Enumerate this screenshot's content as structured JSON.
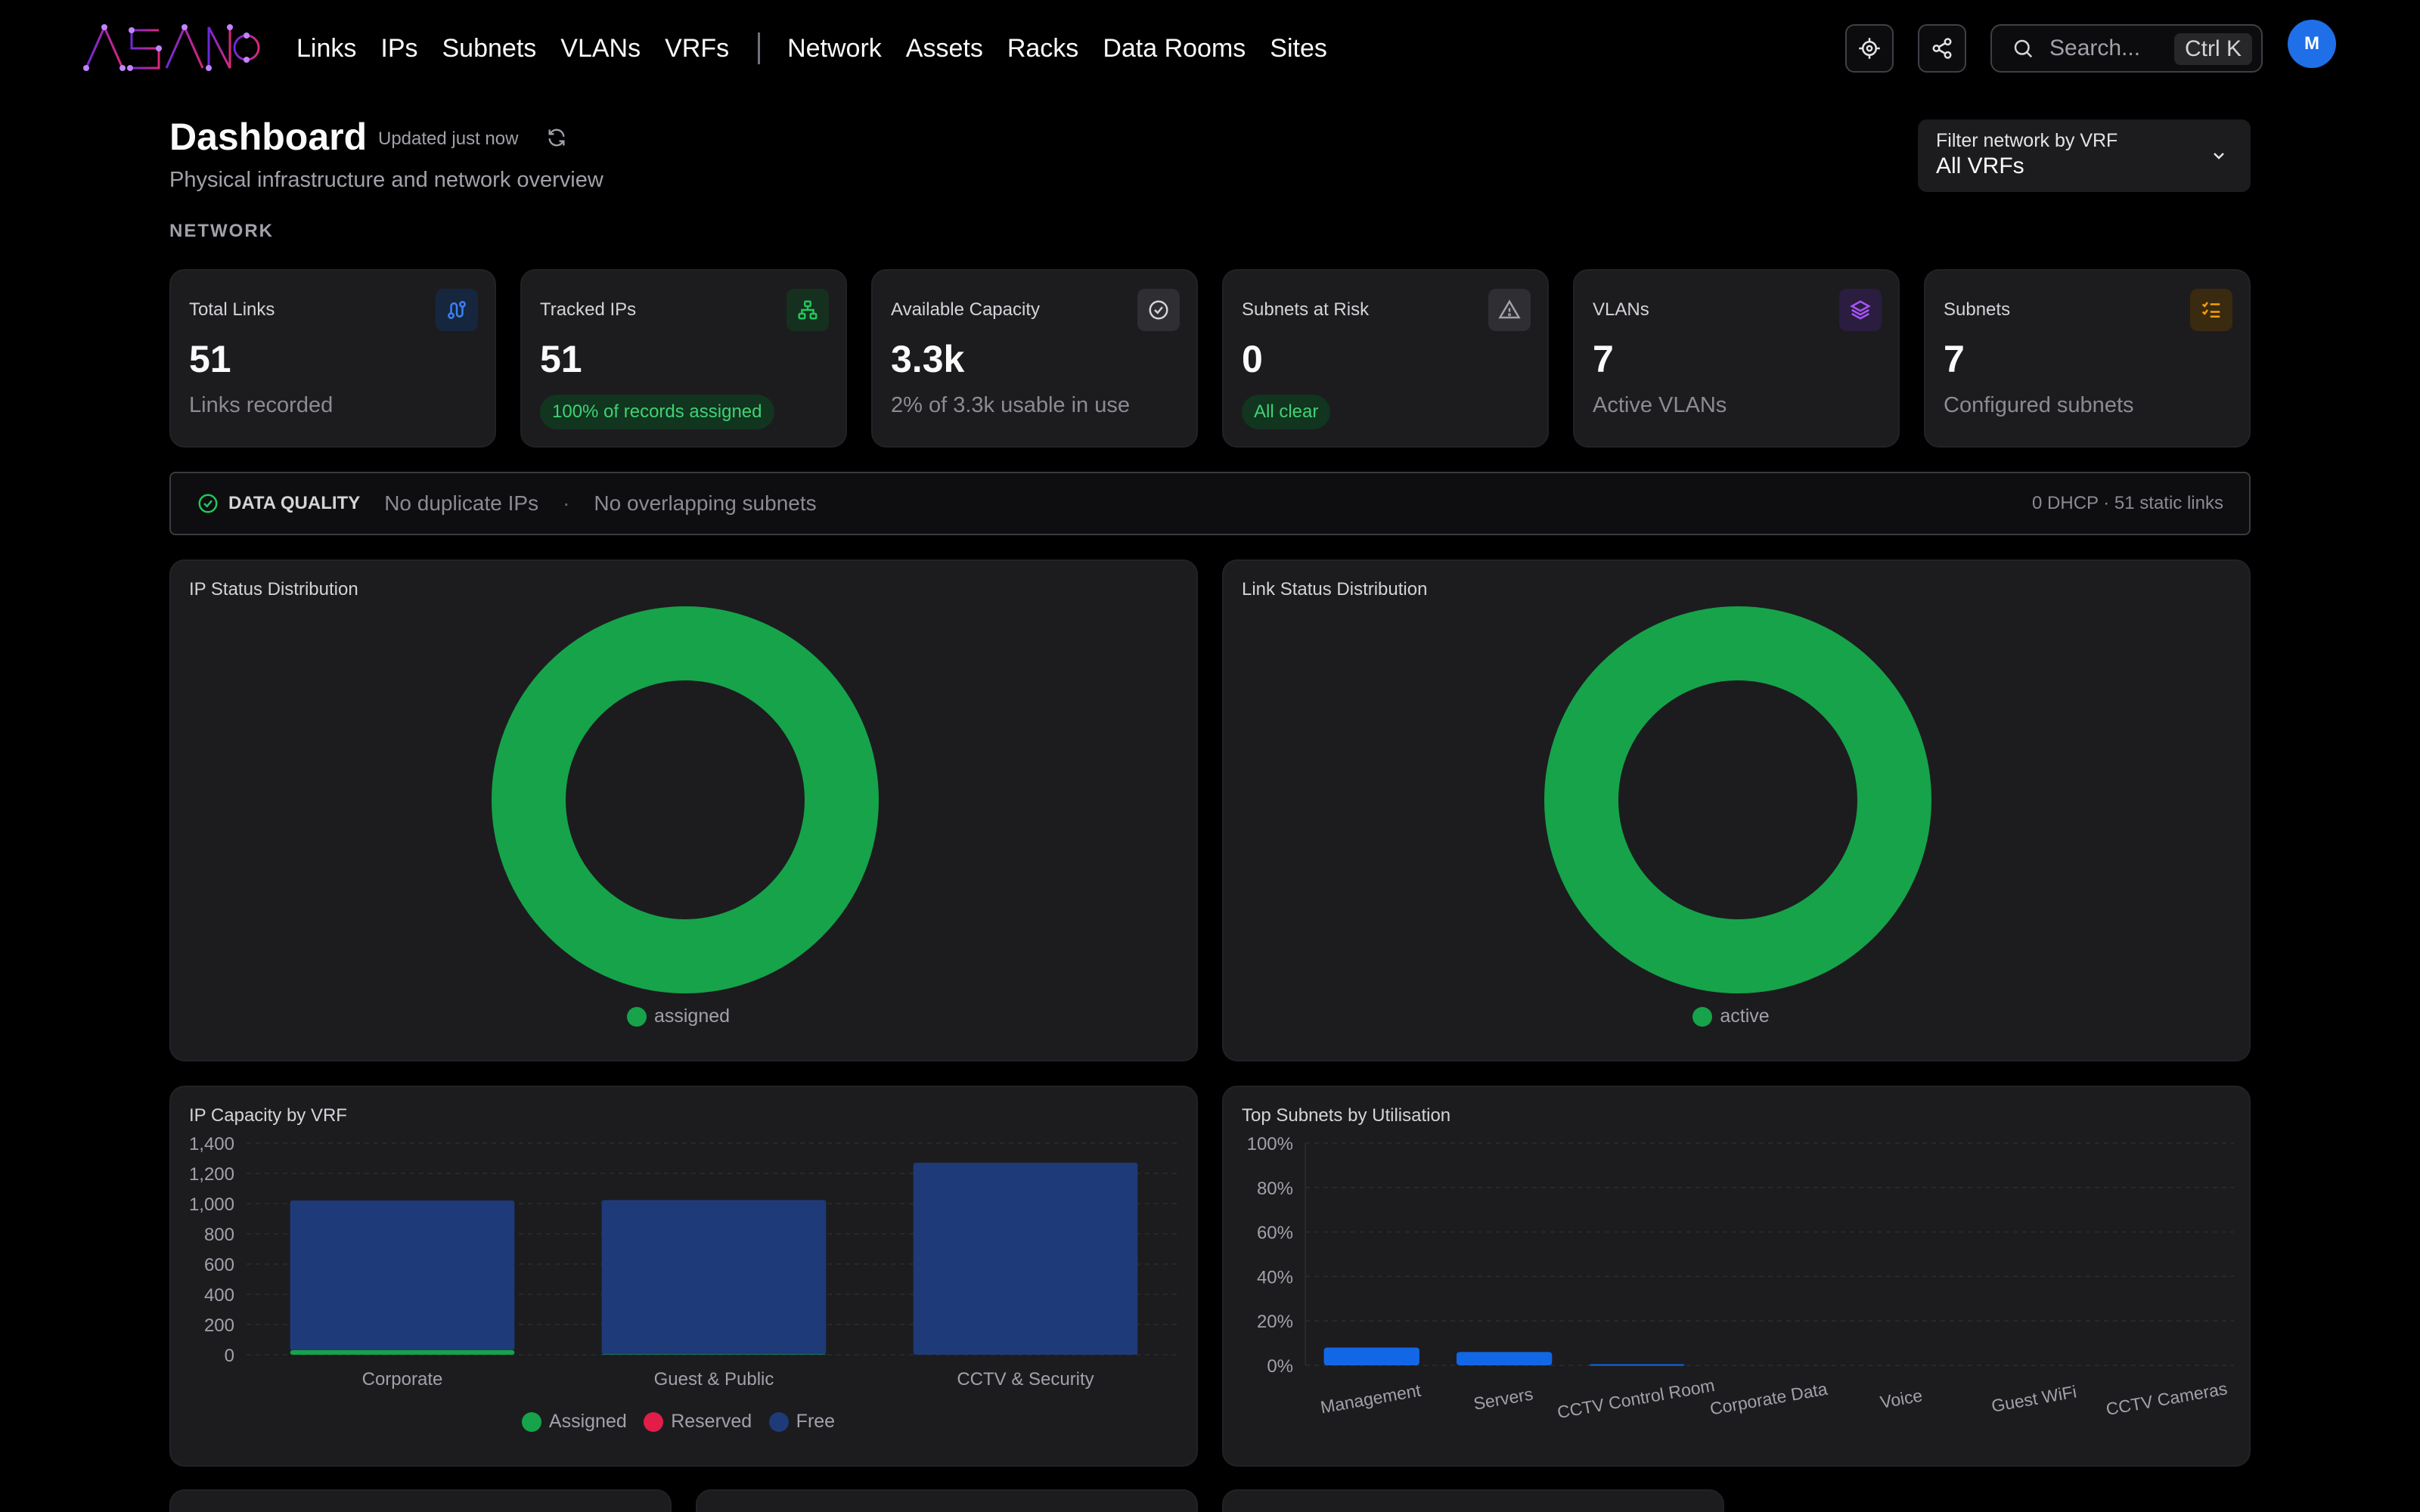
{
  "nav": {
    "brand": "ASANO",
    "links": [
      "Links",
      "IPs",
      "Subnets",
      "VLANs",
      "VRFs"
    ],
    "links2": [
      "Network",
      "Assets",
      "Racks",
      "Data Rooms",
      "Sites"
    ],
    "search_placeholder": "Search...",
    "search_shortcut": "Ctrl K",
    "avatar_initial": "M"
  },
  "header": {
    "title": "Dashboard",
    "updated": "Updated just now",
    "subtitle": "Physical infrastructure and network overview",
    "section": "NETWORK",
    "vrf_filter_label": "Filter network by VRF",
    "vrf_filter_value": "All VRFs"
  },
  "stats": [
    {
      "label": "Total Links",
      "value": "51",
      "sub": "Links recorded",
      "icon": "links-icon",
      "icon_color": "#3b82f6",
      "icon_bg": "#16263f"
    },
    {
      "label": "Tracked IPs",
      "value": "51",
      "pill": "100% of records assigned",
      "icon": "network-tree-icon",
      "icon_color": "#22c55e",
      "icon_bg": "#15301f"
    },
    {
      "label": "Available Capacity",
      "value": "3.3k",
      "sub": "2% of 3.3k usable in use",
      "icon": "check-circle-icon",
      "icon_color": "#d4d4d8",
      "icon_bg": "#2e2e33"
    },
    {
      "label": "Subnets at Risk",
      "value": "0",
      "pill": "All clear",
      "icon": "warning-icon",
      "icon_color": "#a1a1aa",
      "icon_bg": "#2e2e33"
    },
    {
      "label": "VLANs",
      "value": "7",
      "sub": "Active VLANs",
      "icon": "layers-icon",
      "icon_color": "#a855f7",
      "icon_bg": "#2a1d40"
    },
    {
      "label": "Subnets",
      "value": "7",
      "sub": "Configured subnets",
      "icon": "list-check-icon",
      "icon_color": "#f59e0b",
      "icon_bg": "#3a2a10"
    }
  ],
  "data_quality": {
    "title": "DATA QUALITY",
    "item1": "No duplicate IPs",
    "sep": "·",
    "item2": "No overlapping subnets",
    "right": "0 DHCP · 51 static links"
  },
  "panels": {
    "ip_status": "IP Status Distribution",
    "link_status": "Link Status Distribution",
    "ip_capacity": "IP Capacity by VRF",
    "top_subnets": "Top Subnets by Utilisation"
  },
  "colors": {
    "green": "#16a34a",
    "blue": "#1e3a78",
    "blue_bright": "#1267e6",
    "pink": "#e11d48"
  },
  "chart_data": [
    {
      "type": "pie",
      "title": "IP Status Distribution",
      "categories": [
        "assigned"
      ],
      "values": [
        51
      ],
      "colors": [
        "#16a34a"
      ]
    },
    {
      "type": "pie",
      "title": "Link Status Distribution",
      "categories": [
        "active"
      ],
      "values": [
        51
      ],
      "colors": [
        "#16a34a"
      ]
    },
    {
      "type": "bar",
      "title": "IP Capacity by VRF",
      "stacked": true,
      "categories": [
        "Corporate",
        "Guest & Public",
        "CCTV & Security"
      ],
      "series": [
        {
          "name": "Assigned",
          "values": [
            30,
            3,
            0
          ],
          "color": "#16a34a"
        },
        {
          "name": "Reserved",
          "values": [
            0,
            0,
            0
          ],
          "color": "#e11d48"
        },
        {
          "name": "Free",
          "values": [
            990,
            1020,
            1270
          ],
          "color": "#1e3a78"
        }
      ],
      "yticks": [
        "0",
        "200",
        "400",
        "600",
        "800",
        "1,000",
        "1,200",
        "1,400"
      ],
      "ylim": [
        0,
        1400
      ]
    },
    {
      "type": "bar",
      "title": "Top Subnets by Utilisation",
      "categories": [
        "Management",
        "Servers",
        "CCTV Control Room",
        "Corporate Data",
        "Voice",
        "Guest WiFi",
        "CCTV Cameras"
      ],
      "values": [
        8,
        6,
        0.5,
        0,
        0,
        0,
        0
      ],
      "yticks": [
        "0%",
        "20%",
        "40%",
        "60%",
        "80%",
        "100%"
      ],
      "ylim": [
        0,
        100
      ]
    }
  ]
}
